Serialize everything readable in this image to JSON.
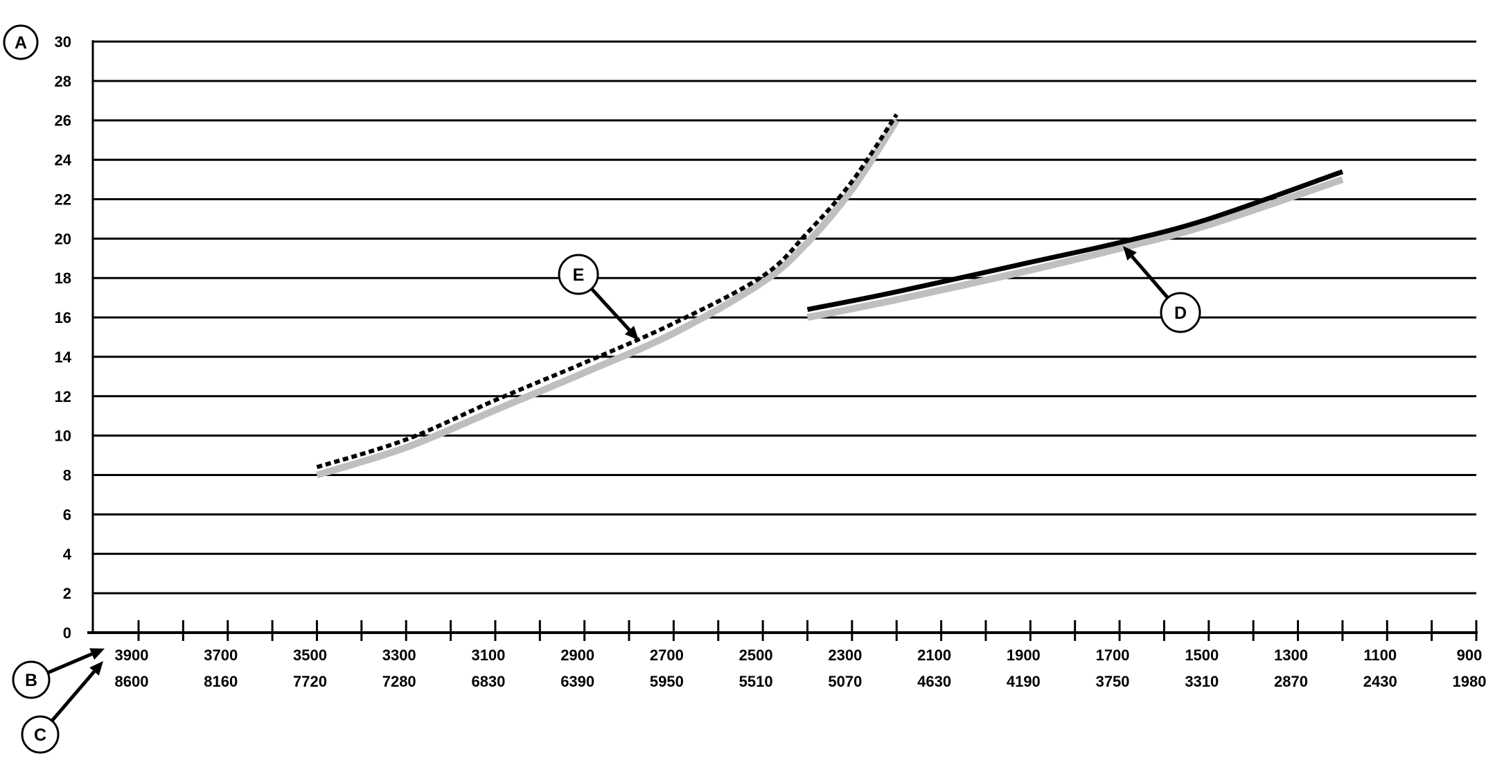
{
  "chart_data": {
    "type": "line",
    "title": "",
    "xlabel": "",
    "ylabel": "",
    "ylim": [
      0,
      30
    ],
    "yticks": [
      0,
      2,
      4,
      6,
      8,
      10,
      12,
      14,
      16,
      18,
      20,
      22,
      24,
      26,
      28,
      30
    ],
    "grid": "horizontal",
    "x_axis_reversed": true,
    "xticks_primary": [
      3900,
      3700,
      3500,
      3300,
      3100,
      2900,
      2700,
      2500,
      2300,
      2100,
      1900,
      1700,
      1500,
      1300,
      1100,
      900
    ],
    "xticks_secondary": [
      8600,
      8160,
      7720,
      7280,
      6830,
      6390,
      5950,
      5510,
      5070,
      4630,
      4190,
      3750,
      3310,
      2870,
      2430,
      1980
    ],
    "xlim": [
      3900,
      900
    ],
    "series": [
      {
        "style": "gray",
        "color": "#bfbfbf",
        "x": [
          3500,
          3300,
          3100,
          2900,
          2700,
          2500,
          2400,
          2300,
          2200
        ],
        "y": [
          8.0,
          9.4,
          11.3,
          13.2,
          15.2,
          17.8,
          19.8,
          22.5,
          26.0
        ]
      },
      {
        "style": "dashed",
        "color": "#000000",
        "x": [
          3500,
          3300,
          3100,
          2900,
          2700,
          2500,
          2400,
          2300,
          2200
        ],
        "y": [
          8.4,
          9.8,
          11.8,
          13.7,
          15.7,
          18.1,
          20.3,
          22.9,
          26.3
        ]
      },
      {
        "style": "gray",
        "color": "#bfbfbf",
        "x": [
          2400,
          2200,
          1900,
          1700,
          1500,
          1200
        ],
        "y": [
          16.0,
          16.9,
          18.4,
          19.5,
          20.7,
          23.0
        ]
      },
      {
        "style": "solid",
        "color": "#000000",
        "x": [
          2400,
          2200,
          1900,
          1700,
          1500,
          1200
        ],
        "y": [
          16.4,
          17.3,
          18.8,
          19.8,
          21.0,
          23.4
        ]
      }
    ],
    "callouts": [
      {
        "label": "A",
        "target": "y-axis"
      },
      {
        "label": "B",
        "target": "primary x-axis labels"
      },
      {
        "label": "C",
        "target": "secondary x-axis labels"
      },
      {
        "label": "D",
        "target": "solid curve",
        "x": 1690,
        "y": 19.7
      },
      {
        "label": "E",
        "target": "dashed curve",
        "x": 2780,
        "y": 14.7
      }
    ]
  }
}
